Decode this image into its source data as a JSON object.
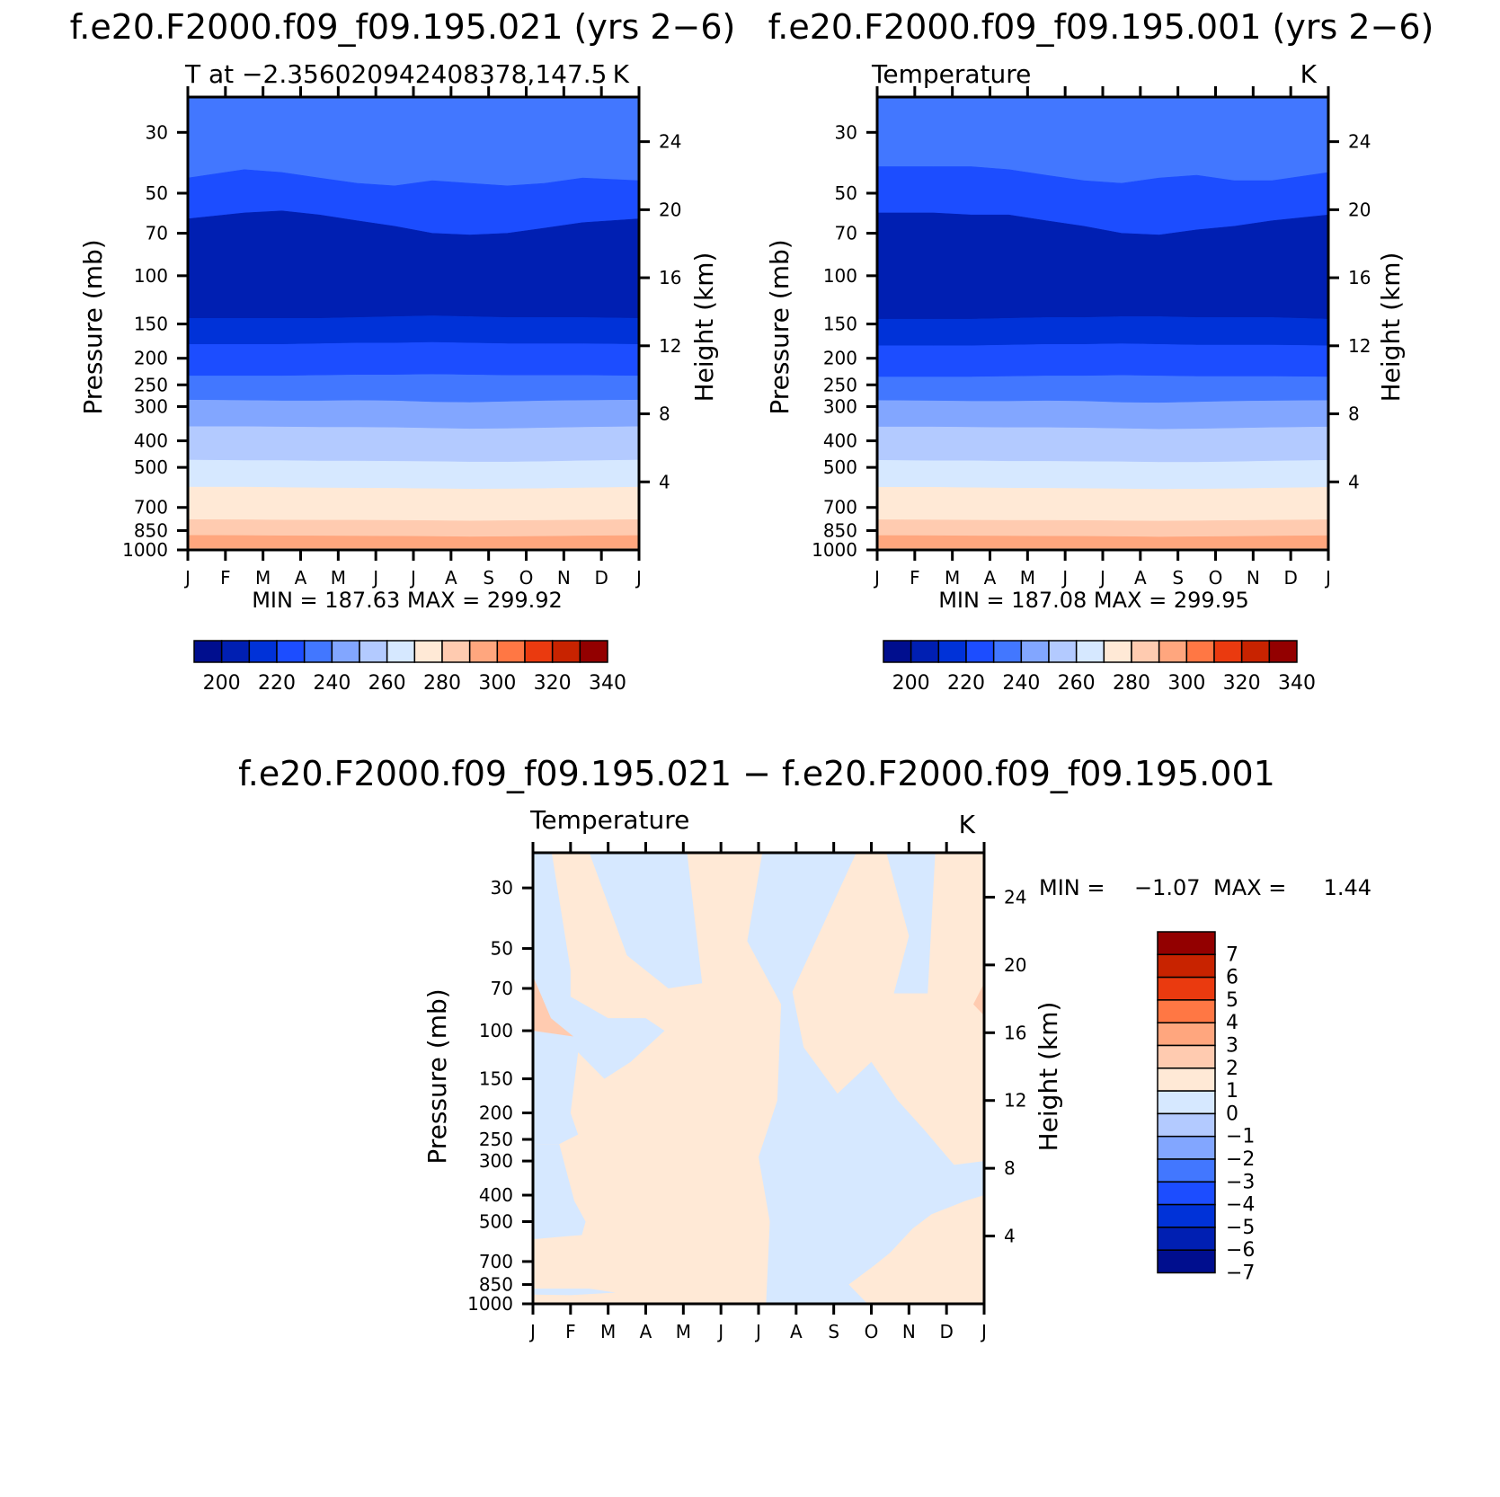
{
  "colors": {
    "abs_palette": [
      "#000e8e",
      "#001fb2",
      "#0032d8",
      "#1c4dff",
      "#4277ff",
      "#82a6ff",
      "#b3caff",
      "#d6e8ff",
      "#ffe9d6",
      "#ffcbb0",
      "#ffa67e",
      "#ff7744",
      "#ea3a0f",
      "#c82300",
      "#930000"
    ],
    "diff_palette": [
      "#000e8e",
      "#001fb2",
      "#0032d8",
      "#1c4dff",
      "#4277ff",
      "#82a6ff",
      "#b3caff",
      "#d6e8ff",
      "#ffe9d6",
      "#ffcbb0",
      "#ffa67e",
      "#ff7744",
      "#ea3a0f",
      "#c82300",
      "#930000"
    ]
  },
  "chart_data": [
    {
      "type": "heatmap",
      "title": "f.e20.F2000.f09_f09.195.021 (yrs 2−6)",
      "left_string": "T at −2.356020942408378,147.5",
      "right_string": "K",
      "ylabel": "Pressure (mb)",
      "ylabel_right": "Height (km)",
      "x_ticks": [
        "J",
        "F",
        "M",
        "A",
        "M",
        "J",
        "J",
        "A",
        "S",
        "O",
        "N",
        "D",
        "J"
      ],
      "y_ticks": [
        30,
        50,
        70,
        100,
        150,
        200,
        250,
        300,
        400,
        500,
        700,
        850,
        1000
      ],
      "y_ticks_right": [
        24,
        20,
        16,
        12,
        8,
        4
      ],
      "min_max": "MIN =  187.63  MAX =  299.92",
      "levels": [
        200,
        220,
        240,
        260,
        280,
        300,
        320,
        340
      ],
      "levels_step": 10,
      "colorbar_labels": [
        "200",
        "220",
        "240",
        "260",
        "280",
        "300",
        "320",
        "340"
      ],
      "band_boundaries_mb": [
        {
          "level": 225,
          "p": [
            44,
            41,
            42,
            44,
            46,
            47,
            45,
            46,
            47,
            46,
            44,
            45
          ]
        },
        {
          "level": 215,
          "p": [
            62,
            59,
            58,
            60,
            63,
            66,
            70,
            71,
            70,
            67,
            64,
            62
          ]
        },
        {
          "level": 205,
          "p": [
            143,
            143,
            143,
            143,
            142,
            141,
            140,
            141,
            142,
            142,
            142,
            143
          ]
        },
        {
          "level": 215,
          "p": [
            178,
            178,
            178,
            177,
            176,
            176,
            175,
            176,
            177,
            177,
            177,
            178
          ]
        },
        {
          "level": 225,
          "p": [
            232,
            232,
            232,
            231,
            230,
            230,
            229,
            230,
            231,
            231,
            231,
            232
          ]
        },
        {
          "level": 235,
          "p": [
            284,
            285,
            286,
            286,
            285,
            286,
            289,
            290,
            288,
            286,
            285,
            284
          ]
        },
        {
          "level": 245,
          "p": [
            355,
            355,
            356,
            357,
            357,
            358,
            360,
            362,
            361,
            359,
            357,
            355
          ]
        },
        {
          "level": 255,
          "p": [
            470,
            472,
            472,
            474,
            474,
            475,
            476,
            478,
            478,
            476,
            473,
            470
          ]
        },
        {
          "level": 265,
          "p": [
            590,
            590,
            592,
            594,
            595,
            596,
            598,
            600,
            599,
            597,
            594,
            590
          ]
        },
        {
          "level": 275,
          "p": [
            775,
            776,
            778,
            779,
            779,
            780,
            782,
            784,
            782,
            780,
            778,
            775
          ]
        },
        {
          "level": 285,
          "p": [
            885,
            886,
            888,
            889,
            890,
            891,
            893,
            896,
            894,
            892,
            889,
            886
          ]
        },
        {
          "level": 295,
          "p": [
            990,
            990,
            990,
            990,
            990,
            990,
            990,
            990,
            990,
            990,
            990,
            990
          ]
        }
      ]
    },
    {
      "type": "heatmap",
      "title": "f.e20.F2000.f09_f09.195.001 (yrs 2−6)",
      "left_string": "Temperature",
      "right_string": "K",
      "ylabel": "Pressure (mb)",
      "ylabel_right": "Height (km)",
      "x_ticks": [
        "J",
        "F",
        "M",
        "A",
        "M",
        "J",
        "J",
        "A",
        "S",
        "O",
        "N",
        "D",
        "J"
      ],
      "y_ticks": [
        30,
        50,
        70,
        100,
        150,
        200,
        250,
        300,
        400,
        500,
        700,
        850,
        1000
      ],
      "y_ticks_right": [
        24,
        20,
        16,
        12,
        8,
        4
      ],
      "min_max": "MIN =  187.08  MAX =  299.95",
      "levels": [
        200,
        220,
        240,
        260,
        280,
        300,
        320,
        340
      ],
      "levels_step": 10,
      "colorbar_labels": [
        "200",
        "220",
        "240",
        "260",
        "280",
        "300",
        "320",
        "340"
      ],
      "band_boundaries_mb": [
        {
          "level": 225,
          "p": [
            40,
            40,
            40,
            41,
            43,
            45,
            46,
            44,
            43,
            45,
            45,
            42
          ]
        },
        {
          "level": 215,
          "p": [
            59,
            59,
            60,
            60,
            63,
            66,
            70,
            71,
            68,
            66,
            63,
            60
          ]
        },
        {
          "level": 205,
          "p": [
            144,
            144,
            144,
            143,
            142,
            142,
            141,
            141,
            142,
            142,
            142,
            144
          ]
        },
        {
          "level": 215,
          "p": [
            180,
            180,
            180,
            179,
            178,
            178,
            177,
            178,
            179,
            179,
            179,
            180
          ]
        },
        {
          "level": 225,
          "p": [
            234,
            234,
            234,
            233,
            232,
            232,
            231,
            232,
            233,
            233,
            233,
            234
          ]
        },
        {
          "level": 235,
          "p": [
            285,
            286,
            287,
            287,
            286,
            287,
            290,
            291,
            289,
            287,
            286,
            285
          ]
        },
        {
          "level": 245,
          "p": [
            356,
            356,
            357,
            358,
            358,
            359,
            361,
            363,
            362,
            360,
            358,
            356
          ]
        },
        {
          "level": 255,
          "p": [
            471,
            473,
            473,
            475,
            475,
            476,
            477,
            479,
            479,
            477,
            474,
            471
          ]
        },
        {
          "level": 265,
          "p": [
            591,
            591,
            593,
            595,
            596,
            597,
            599,
            601,
            600,
            598,
            595,
            591
          ]
        },
        {
          "level": 275,
          "p": [
            776,
            777,
            779,
            780,
            780,
            781,
            783,
            785,
            783,
            781,
            779,
            776
          ]
        },
        {
          "level": 285,
          "p": [
            886,
            887,
            889,
            890,
            891,
            892,
            894,
            897,
            895,
            893,
            890,
            887
          ]
        },
        {
          "level": 295,
          "p": [
            990,
            990,
            990,
            990,
            990,
            990,
            990,
            990,
            990,
            990,
            990,
            990
          ]
        }
      ]
    },
    {
      "type": "heatmap",
      "title": "f.e20.F2000.f09_f09.195.021 − f.e20.F2000.f09_f09.195.001",
      "left_string": "Temperature",
      "right_string": "K",
      "ylabel": "Pressure (mb)",
      "ylabel_right": "Height (km)",
      "x_ticks": [
        "J",
        "F",
        "M",
        "A",
        "M",
        "J",
        "J",
        "A",
        "S",
        "O",
        "N",
        "D",
        "J"
      ],
      "y_ticks": [
        30,
        50,
        70,
        100,
        150,
        200,
        250,
        300,
        400,
        500,
        700,
        850,
        1000
      ],
      "y_ticks_right": [
        24,
        20,
        16,
        12,
        8,
        4
      ],
      "min_max_label": "MIN =",
      "min_value": "−1.07",
      "max_label": "MAX =",
      "max_value": "1.44",
      "levels": [
        -7,
        -6,
        -5,
        -4,
        -3,
        -2,
        -1,
        0,
        1,
        2,
        3,
        4,
        5,
        6,
        7
      ],
      "colorbar_labels": [
        "7",
        "6",
        "5",
        "4",
        "3",
        "2",
        "1",
        "0",
        "−1",
        "−2",
        "−3",
        "−4",
        "−5",
        "−6",
        "−7"
      ],
      "regions": [
        {
          "value": -0.5,
          "pts": [
            [
              0.5,
              22
            ],
            [
              1.5,
              22
            ],
            [
              2.5,
              53
            ],
            [
              3.6,
              70
            ],
            [
              4.5,
              67
            ],
            [
              4.1,
              22
            ],
            [
              6.1,
              22
            ],
            [
              5.7,
              47
            ],
            [
              6.6,
              80
            ],
            [
              6.5,
              180
            ],
            [
              6.0,
              290
            ],
            [
              6.3,
              500
            ],
            [
              6.2,
              1000
            ],
            [
              8.9,
              1000
            ],
            [
              8.4,
              850
            ],
            [
              9.1,
              720
            ],
            [
              9.5,
              650
            ],
            [
              10.1,
              530
            ],
            [
              10.6,
              470
            ],
            [
              11.5,
              420
            ],
            [
              12,
              400
            ],
            [
              12,
              300
            ],
            [
              11.2,
              310
            ],
            [
              10.4,
              230
            ],
            [
              9.7,
              180
            ],
            [
              9.0,
              130
            ],
            [
              8.1,
              170
            ],
            [
              7.2,
              115
            ],
            [
              6.9,
              72
            ],
            [
              8.6,
              22
            ],
            [
              9.1,
              22
            ],
            [
              9.4,
              22
            ],
            [
              10.0,
              45
            ],
            [
              9.6,
              73
            ],
            [
              10.5,
              73
            ],
            [
              10.7,
              22
            ],
            [
              9.5,
              22
            ],
            [
              6.1,
              22
            ]
          ],
          "note": "central cold band"
        },
        {
          "value": -0.5,
          "pts": [
            [
              0,
              22
            ],
            [
              0.5,
              22
            ],
            [
              1.0,
              60
            ],
            [
              1.0,
              75
            ],
            [
              2.0,
              90
            ],
            [
              3.0,
              90
            ],
            [
              3.5,
              100
            ],
            [
              2.6,
              130
            ],
            [
              1.9,
              150
            ],
            [
              1.2,
              120
            ],
            [
              1.0,
              200
            ],
            [
              1.2,
              240
            ],
            [
              0.7,
              260
            ],
            [
              0,
              260
            ]
          ],
          "note": "upper-left cold region"
        },
        {
          "value": -0.5,
          "pts": [
            [
              0,
              260
            ],
            [
              0.7,
              260
            ],
            [
              1.1,
              420
            ],
            [
              1.4,
              500
            ],
            [
              1.3,
              560
            ],
            [
              0,
              580
            ]
          ],
          "note": "left cold region"
        },
        {
          "value": -0.5,
          "pts": [
            [
              0,
              880
            ],
            [
              1.5,
              880
            ],
            [
              2.2,
              910
            ],
            [
              1.0,
              930
            ],
            [
              0,
              925
            ]
          ],
          "note": "bottom-left sliver"
        }
      ]
    }
  ]
}
